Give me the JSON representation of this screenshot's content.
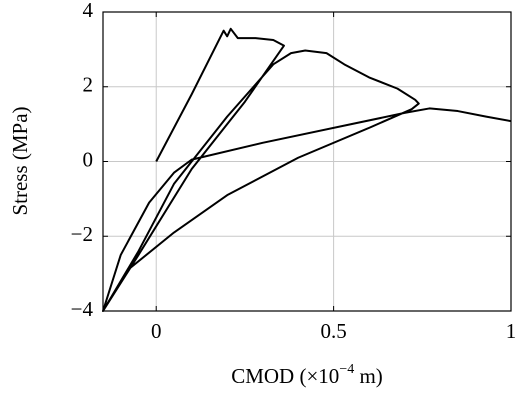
{
  "chart_data": {
    "type": "line",
    "xlabel": "CMOD (×10",
    "xlabel_exponent": "−4",
    "xlabel_unit": " m)",
    "ylabel": "Stress (MPa)",
    "xlim": [
      -0.15,
      1
    ],
    "ylim": [
      -4,
      4
    ],
    "xticks": [
      0,
      0.5,
      1
    ],
    "yticks": [
      {
        "value": -4,
        "label": "−4"
      },
      {
        "value": -2,
        "label": "−2"
      },
      0,
      2,
      4
    ],
    "grid": true,
    "series": [
      {
        "color": "#000000",
        "x": [
          0,
          0.1,
          0.19,
          0.2,
          0.21,
          0.23,
          0.28,
          0.33,
          0.36,
          0.25,
          0.1,
          -0.05,
          -0.15,
          -0.05,
          0.05,
          0.2,
          0.33,
          0.38,
          0.42,
          0.48,
          0.53,
          0.6,
          0.68,
          0.73,
          0.74,
          0.72,
          0.6,
          0.4,
          0.2,
          0.05,
          -0.08,
          -0.15,
          -0.1,
          -0.02,
          0.05,
          0.1,
          0.3,
          0.55,
          0.7,
          0.77,
          0.85,
          0.93,
          1
        ],
        "values": [
          0,
          1.8,
          3.5,
          3.35,
          3.55,
          3.3,
          3.3,
          3.25,
          3.1,
          1.6,
          -0.2,
          -2.5,
          -4,
          -2.4,
          -0.6,
          1.2,
          2.6,
          2.9,
          2.97,
          2.9,
          2.6,
          2.25,
          1.95,
          1.65,
          1.55,
          1.4,
          0.9,
          0.1,
          -0.9,
          -1.9,
          -2.9,
          -4,
          -2.5,
          -1.1,
          -0.3,
          0.05,
          0.5,
          1.0,
          1.3,
          1.42,
          1.35,
          1.2,
          1.08
        ]
      }
    ]
  }
}
